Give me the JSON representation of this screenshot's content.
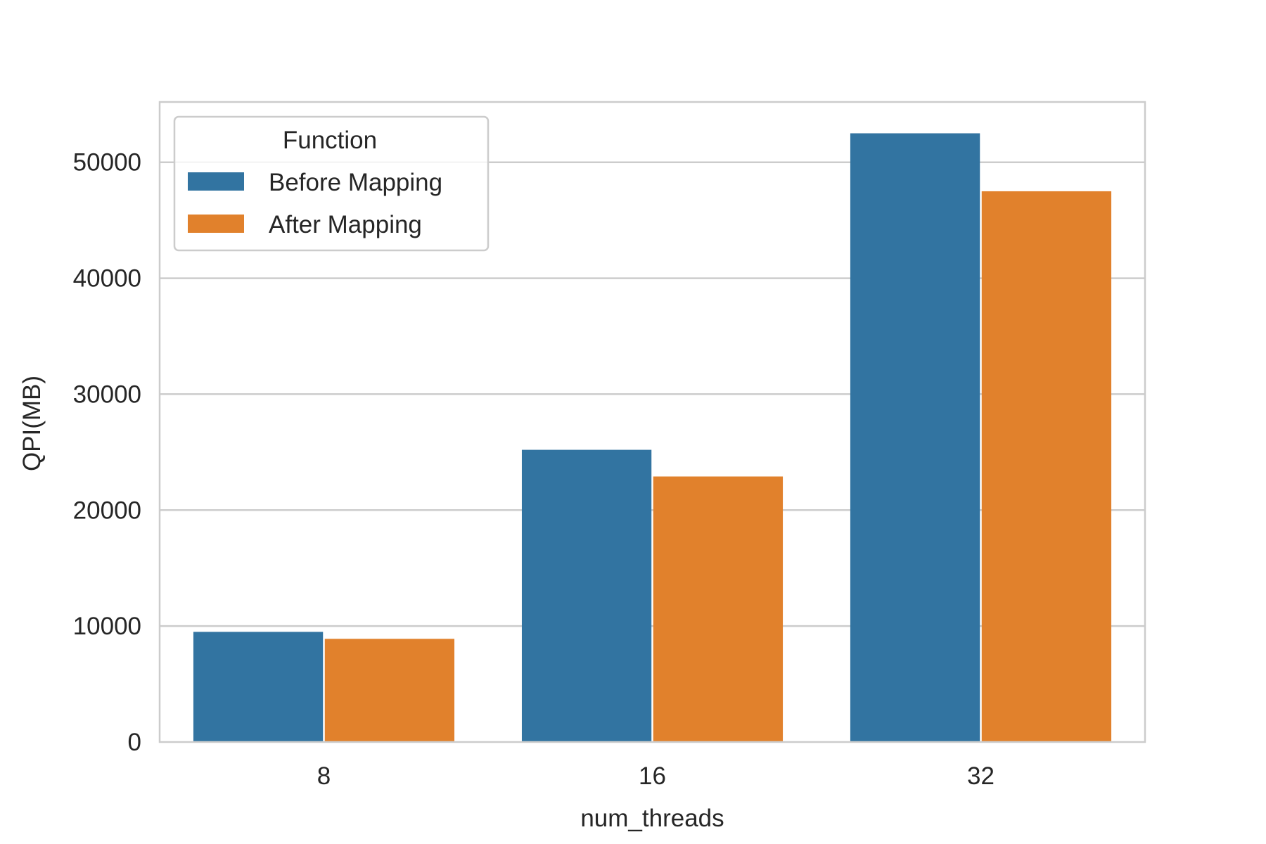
{
  "chart_data": {
    "type": "bar",
    "categories": [
      "8",
      "16",
      "32"
    ],
    "series": [
      {
        "name": "Before Mapping",
        "color": "#3274a1",
        "values": [
          9500,
          25200,
          52500
        ]
      },
      {
        "name": "After Mapping",
        "color": "#e1812c",
        "values": [
          8900,
          22900,
          47500
        ]
      }
    ],
    "xlabel": "num_threads",
    "ylabel": "QPI(MB)",
    "ylim": [
      0,
      55200
    ],
    "yticks": [
      0,
      10000,
      20000,
      30000,
      40000,
      50000
    ],
    "grid": true,
    "legend": {
      "title": "Function",
      "placement": "top-left"
    }
  }
}
